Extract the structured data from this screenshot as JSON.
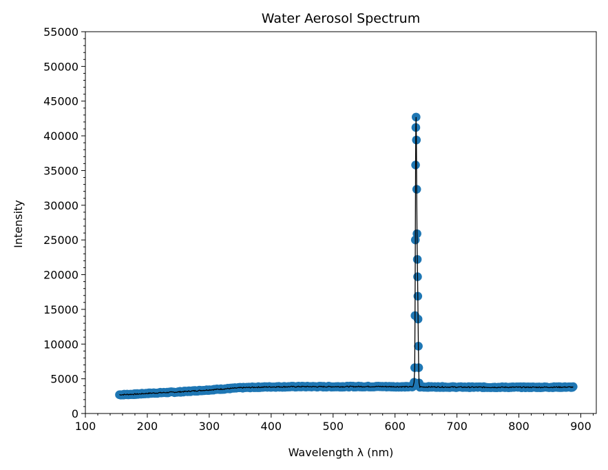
{
  "chart_data": {
    "type": "scatter",
    "title": "Water Aerosol Spectrum",
    "xlabel": "Wavelength λ (nm)",
    "ylabel": "Intensity",
    "xlim": [
      100,
      925
    ],
    "ylim": [
      0,
      55000
    ],
    "x_ticks": [
      100,
      200,
      300,
      400,
      500,
      600,
      700,
      800,
      900
    ],
    "x_tick_labels": [
      "100",
      "200",
      "300",
      "400",
      "500",
      "600",
      "700",
      "800",
      "900"
    ],
    "y_ticks": [
      0,
      5000,
      10000,
      15000,
      20000,
      25000,
      30000,
      35000,
      40000,
      45000,
      50000,
      55000
    ],
    "y_tick_labels": [
      "0",
      "5000",
      "10000",
      "15000",
      "20000",
      "25000",
      "30000",
      "35000",
      "40000",
      "45000",
      "50000",
      "55000"
    ],
    "grid": false,
    "marker_color": "#1f77b4",
    "line_color": "#000000",
    "baseline": [
      [
        155,
        2700
      ],
      [
        170,
        2750
      ],
      [
        185,
        2800
      ],
      [
        200,
        2900
      ],
      [
        225,
        3000
      ],
      [
        250,
        3100
      ],
      [
        275,
        3250
      ],
      [
        300,
        3400
      ],
      [
        325,
        3550
      ],
      [
        350,
        3700
      ],
      [
        375,
        3780
      ],
      [
        400,
        3830
      ],
      [
        425,
        3850
      ],
      [
        450,
        3870
      ],
      [
        475,
        3860
      ],
      [
        500,
        3860
      ],
      [
        525,
        3870
      ],
      [
        550,
        3880
      ],
      [
        575,
        3880
      ],
      [
        600,
        3860
      ],
      [
        625,
        3840
      ],
      [
        645,
        3830
      ],
      [
        675,
        3820
      ],
      [
        700,
        3800
      ],
      [
        725,
        3790
      ],
      [
        750,
        3780
      ],
      [
        775,
        3780
      ],
      [
        800,
        3780
      ],
      [
        825,
        3780
      ],
      [
        850,
        3790
      ],
      [
        875,
        3800
      ],
      [
        888,
        3800
      ]
    ],
    "peak_points": [
      [
        631.8,
        6600
      ],
      [
        632.3,
        14100
      ],
      [
        632.8,
        25000
      ],
      [
        633.2,
        35800
      ],
      [
        633.6,
        41200
      ],
      [
        634.0,
        42700
      ],
      [
        634.5,
        39400
      ],
      [
        635.0,
        32300
      ],
      [
        635.5,
        25900
      ],
      [
        636.0,
        22200
      ],
      [
        636.4,
        19700
      ],
      [
        636.8,
        16900
      ],
      [
        637.2,
        13600
      ],
      [
        637.7,
        9700
      ],
      [
        638.2,
        6600
      ],
      [
        638.8,
        4400
      ],
      [
        630.8,
        4500
      ],
      [
        639.5,
        4100
      ]
    ]
  }
}
